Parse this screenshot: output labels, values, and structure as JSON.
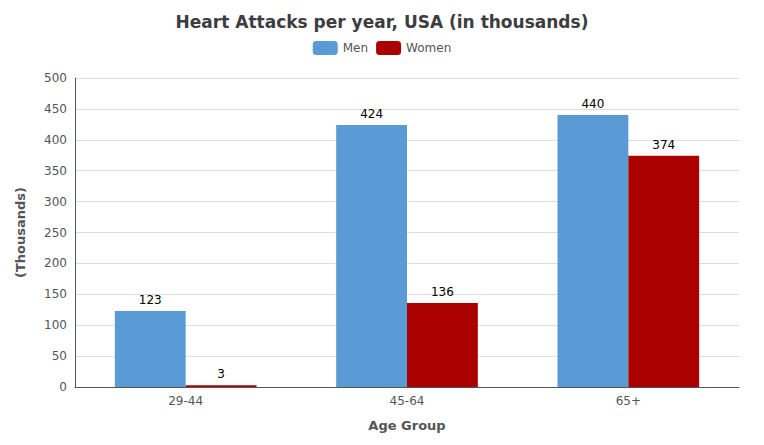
{
  "chart_data": {
    "type": "bar",
    "title": "Heart Attacks per year, USA (in thousands)",
    "xlabel": "Age Group",
    "ylabel": "(Thousands)",
    "categories": [
      "29-44",
      "45-64",
      "65+"
    ],
    "series": [
      {
        "name": "Men",
        "color": "#5B9BD5",
        "values": [
          123,
          424,
          440
        ]
      },
      {
        "name": "Women",
        "color": "#AA0000",
        "values": [
          3,
          136,
          374
        ]
      }
    ],
    "ylim": [
      0,
      500
    ],
    "yticks": [
      0,
      50,
      100,
      150,
      200,
      250,
      300,
      350,
      400,
      450,
      500
    ],
    "grid": true,
    "legend": "top",
    "data_labels": true
  }
}
